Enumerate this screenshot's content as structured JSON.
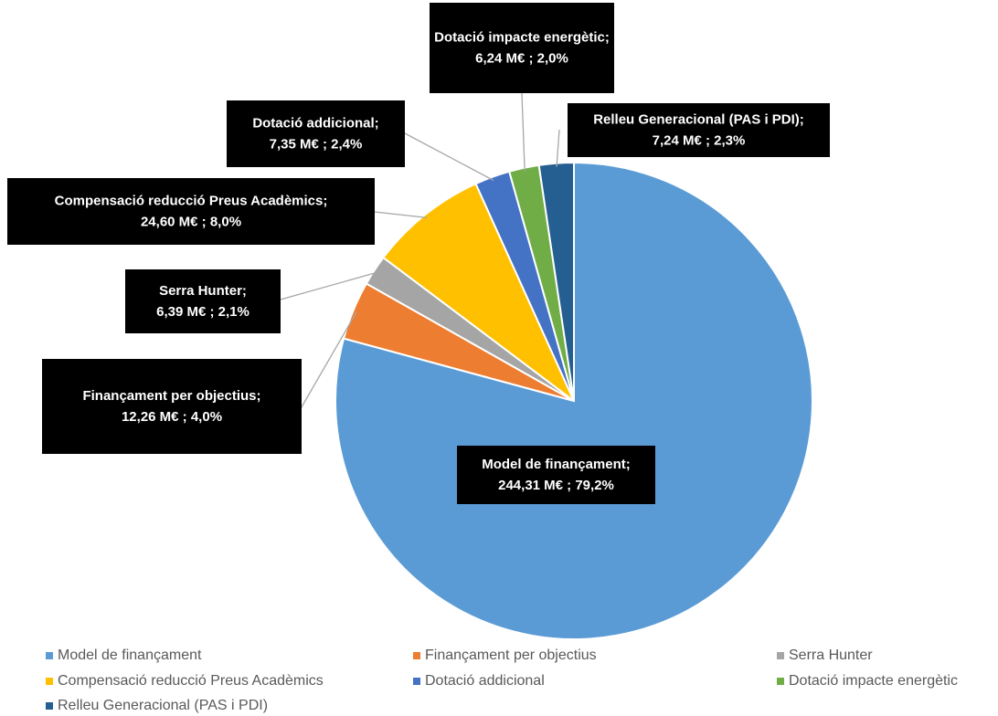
{
  "chart_data": {
    "type": "pie",
    "categories": [
      "Model de finançament",
      "Finançament per objectius",
      "Serra Hunter",
      "Compensació reducció Preus Acadèmics",
      "Dotació addicional",
      "Dotació impacte energètic",
      "Relleu Generacional (PAS i PDI)"
    ],
    "label_names": [
      "Model de finançament;",
      "Finançament per objectius;",
      "Serra Hunter;",
      "Compensació reducció Preus Acadèmics;",
      "Dotació addicional;",
      "Dotació impacte energètic;",
      "Relleu Generacional (PAS i PDI);"
    ],
    "values": [
      244.31,
      12.26,
      6.39,
      24.6,
      7.35,
      6.24,
      7.24
    ],
    "value_labels": [
      "244,31 M€ ; 79,2%",
      "12,26 M€ ; 4,0%",
      "6,39 M€ ; 2,1%",
      "24,60 M€ ; 8,0%",
      "7,35 M€ ; 2,4%",
      "6,24 M€ ; 2,0%",
      "7,24 M€ ; 2,3%"
    ],
    "colors": [
      "#5B9BD5",
      "#ED7D31",
      "#A5A5A5",
      "#FFC000",
      "#4472C4",
      "#70AD47",
      "#255E91"
    ],
    "legend": "bottom"
  }
}
